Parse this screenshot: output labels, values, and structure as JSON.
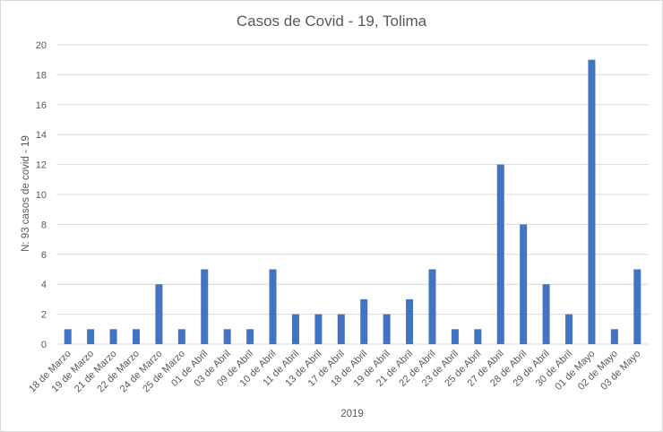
{
  "chart_data": {
    "type": "bar",
    "title": "Casos de Covid - 19, Tolima",
    "xlabel": "2019",
    "ylabel": "N: 93 casos de covid - 19",
    "ylim": [
      0,
      20
    ],
    "yticks": [
      0,
      2,
      4,
      6,
      8,
      10,
      12,
      14,
      16,
      18,
      20
    ],
    "grid": true,
    "legend": "none",
    "bar_color": "#4472C4",
    "categories": [
      "18 de Marzo",
      "19 de Marzo",
      "21 de Marzo",
      "22 de Marzo",
      "24 de Marzo",
      "25 de Marzo",
      "01 de Abril",
      "03 de Abril",
      "09 de Abril",
      "10 de Abril",
      "11 de Abril",
      "13 de Abril",
      "17 de Abril",
      "18 de Abril",
      "19 de Abril",
      "21 de Abril",
      "22 de Abril",
      "23 de Abril",
      "25 de Abril",
      "27 de Abril",
      "28 de Abril",
      "29 de Abril",
      "30 de Abril",
      "01 de Mayo",
      "02 de Mayo",
      "03 de Mayo"
    ],
    "values": [
      1,
      1,
      1,
      1,
      4,
      1,
      5,
      1,
      1,
      5,
      2,
      2,
      2,
      3,
      2,
      3,
      5,
      1,
      1,
      12,
      8,
      4,
      2,
      19,
      1,
      5
    ]
  }
}
